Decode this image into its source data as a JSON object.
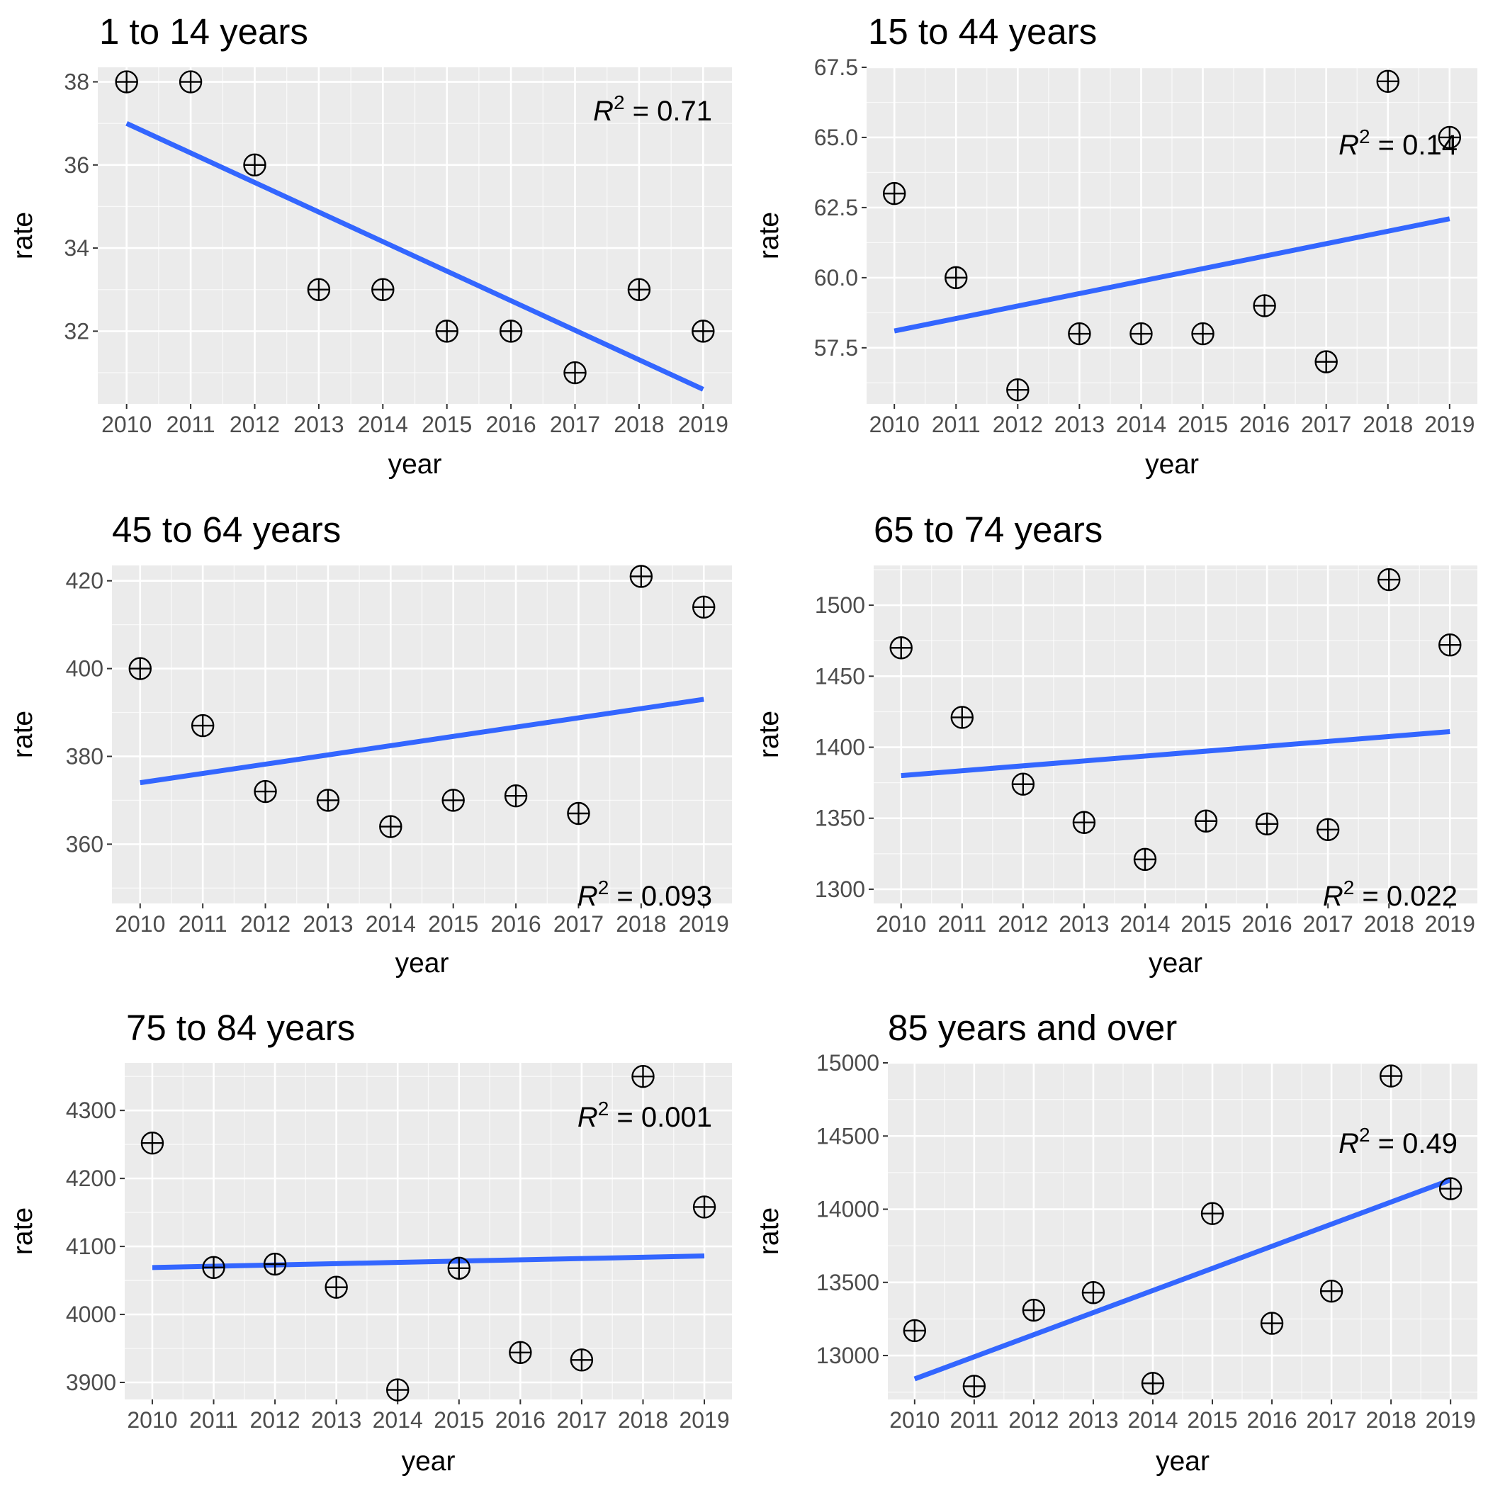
{
  "chart_data": [
    {
      "type": "scatter",
      "title": "1 to 14 years",
      "xlabel": "year",
      "ylabel": "rate",
      "x": [
        2010,
        2011,
        2012,
        2013,
        2014,
        2015,
        2016,
        2017,
        2018,
        2019
      ],
      "series": [
        {
          "values": [
            38,
            38,
            36,
            33,
            33,
            32,
            32,
            31,
            33,
            32
          ]
        }
      ],
      "trend_line": {
        "x": [
          2010,
          2019
        ],
        "y": [
          37.0,
          30.6
        ]
      },
      "r2_value": "0.71",
      "r2_position": "top-right",
      "ylim": [
        30.25,
        38.35
      ],
      "yticks": [
        "32",
        "34",
        "36",
        "38"
      ],
      "xticks": [
        "2010",
        "2011",
        "2012",
        "2013",
        "2014",
        "2015",
        "2016",
        "2017",
        "2018",
        "2019"
      ],
      "grid": true
    },
    {
      "type": "scatter",
      "title": "15 to 44 years",
      "xlabel": "year",
      "ylabel": "rate",
      "x": [
        2010,
        2011,
        2012,
        2013,
        2014,
        2015,
        2016,
        2017,
        2018,
        2019
      ],
      "series": [
        {
          "values": [
            63,
            60,
            56,
            58,
            58,
            58,
            59,
            57,
            67,
            65
          ]
        }
      ],
      "trend_line": {
        "x": [
          2010,
          2019
        ],
        "y": [
          58.1,
          62.1
        ]
      },
      "r2_value": "0.14",
      "r2_position": "top-right",
      "ylim": [
        55.5,
        67.5
      ],
      "yticks": [
        "57.5",
        "60.0",
        "62.5",
        "65.0",
        "67.5"
      ],
      "xticks": [
        "2010",
        "2011",
        "2012",
        "2013",
        "2014",
        "2015",
        "2016",
        "2017",
        "2018",
        "2019"
      ],
      "grid": true
    },
    {
      "type": "scatter",
      "title": "45 to 64 years",
      "xlabel": "year",
      "ylabel": "rate",
      "x": [
        2010,
        2011,
        2012,
        2013,
        2014,
        2015,
        2016,
        2017,
        2018,
        2019
      ],
      "series": [
        {
          "values": [
            400,
            387,
            372,
            370,
            364,
            370,
            371,
            367,
            421,
            414
          ]
        }
      ],
      "trend_line": {
        "x": [
          2010,
          2019
        ],
        "y": [
          374,
          393
        ]
      },
      "r2_value": "0.093",
      "r2_position": "bottom-right",
      "ylim": [
        346.5,
        423.5
      ],
      "yticks": [
        "360",
        "380",
        "400",
        "420"
      ],
      "xticks": [
        "2010",
        "2011",
        "2012",
        "2013",
        "2014",
        "2015",
        "2016",
        "2017",
        "2018",
        "2019"
      ],
      "grid": true
    },
    {
      "type": "scatter",
      "title": "65 to 74 years",
      "xlabel": "year",
      "ylabel": "rate",
      "x": [
        2010,
        2011,
        2012,
        2013,
        2014,
        2015,
        2016,
        2017,
        2018,
        2019
      ],
      "series": [
        {
          "values": [
            1470,
            1421,
            1374,
            1347,
            1321,
            1348,
            1346,
            1342,
            1518,
            1472
          ]
        }
      ],
      "trend_line": {
        "x": [
          2010,
          2019
        ],
        "y": [
          1380,
          1411
        ]
      },
      "r2_value": "0.022",
      "r2_position": "bottom-right",
      "ylim": [
        1290,
        1528
      ],
      "yticks": [
        "1300",
        "1350",
        "1400",
        "1450",
        "1500"
      ],
      "xticks": [
        "2010",
        "2011",
        "2012",
        "2013",
        "2014",
        "2015",
        "2016",
        "2017",
        "2018",
        "2019"
      ],
      "grid": true
    },
    {
      "type": "scatter",
      "title": "75 to 84 years",
      "xlabel": "year",
      "ylabel": "rate",
      "x": [
        2010,
        2011,
        2012,
        2013,
        2014,
        2015,
        2016,
        2017,
        2018,
        2019
      ],
      "series": [
        {
          "values": [
            4252,
            4069,
            4074,
            4040,
            3889,
            4068,
            3944,
            3933,
            4350,
            4158
          ]
        }
      ],
      "trend_line": {
        "x": [
          2010,
          2019
        ],
        "y": [
          4069,
          4086
        ]
      },
      "r2_value": "0.001",
      "r2_position": "top-right",
      "ylim": [
        3875,
        4370
      ],
      "yticks": [
        "3900",
        "4000",
        "4100",
        "4200",
        "4300"
      ],
      "xticks": [
        "2010",
        "2011",
        "2012",
        "2013",
        "2014",
        "2015",
        "2016",
        "2017",
        "2018",
        "2019"
      ],
      "grid": true
    },
    {
      "type": "scatter",
      "title": "85 years and over",
      "xlabel": "year",
      "ylabel": "rate",
      "x": [
        2010,
        2011,
        2012,
        2013,
        2014,
        2015,
        2016,
        2017,
        2018,
        2019
      ],
      "series": [
        {
          "values": [
            13170,
            12790,
            13310,
            13430,
            12810,
            13970,
            13220,
            13440,
            14910,
            14140
          ]
        }
      ],
      "trend_line": {
        "x": [
          2010,
          2019
        ],
        "y": [
          12840,
          14200
        ]
      },
      "r2_value": "0.49",
      "r2_position": "top-right",
      "ylim": [
        12700,
        15000
      ],
      "yticks": [
        "13000",
        "13500",
        "14000",
        "14500",
        "15000"
      ],
      "xticks": [
        "2010",
        "2011",
        "2012",
        "2013",
        "2014",
        "2015",
        "2016",
        "2017",
        "2018",
        "2019"
      ],
      "grid": true
    }
  ],
  "colors": {
    "panel_background": "#ebebeb",
    "grid_major": "#ffffff",
    "trend_line": "#3366ff",
    "point_stroke": "#000000",
    "tick_text": "#4d4d4d"
  },
  "r2_label_prefix": "R",
  "r2_label_superscript": "2",
  "r2_label_equals": " = "
}
